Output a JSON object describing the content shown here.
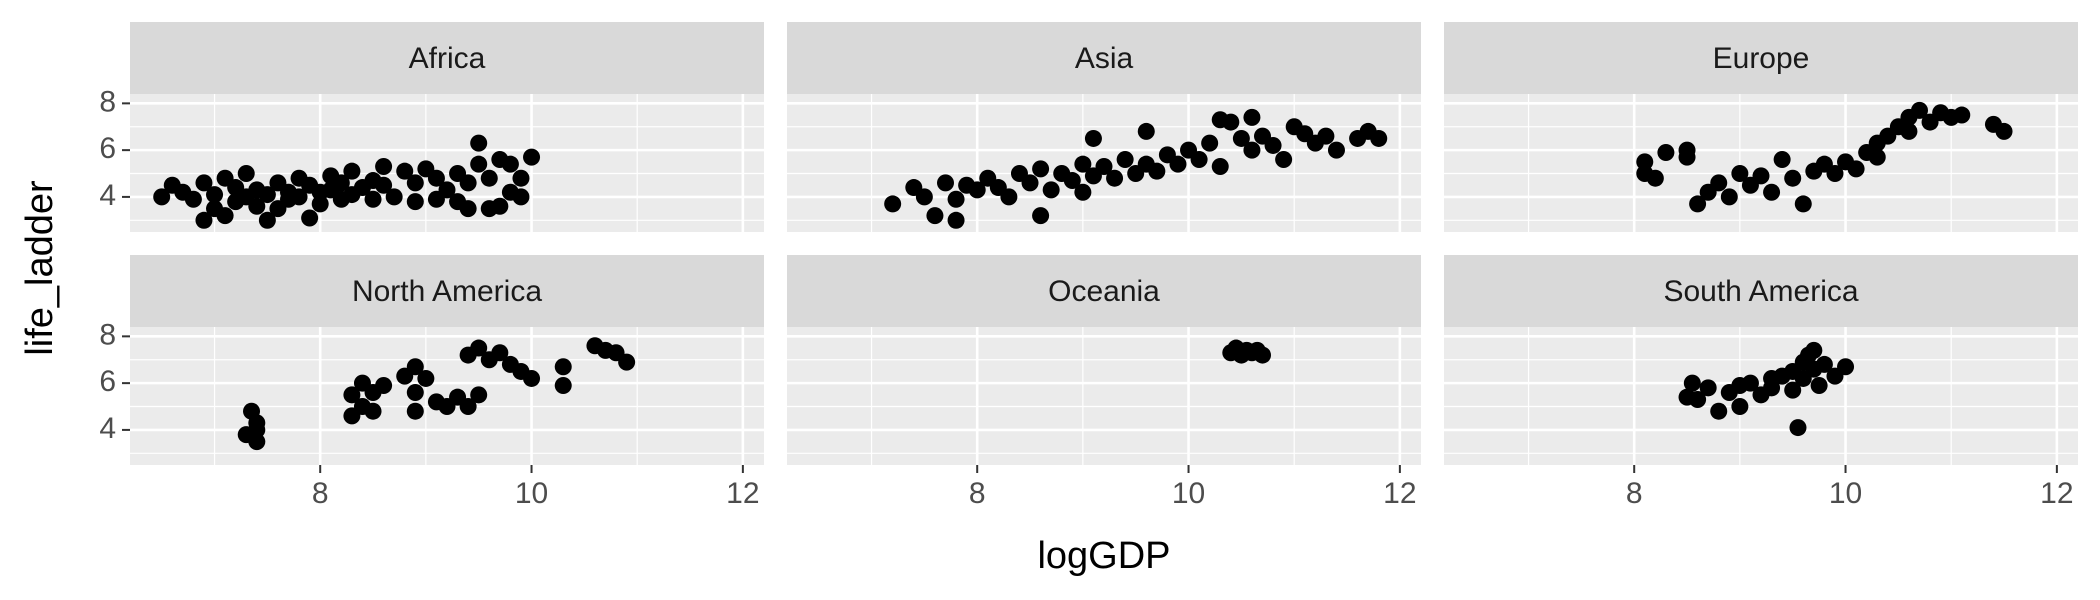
{
  "chart_data": {
    "type": "scatter",
    "xlabel": "logGDP",
    "ylabel": "life_ladder",
    "xlim": [
      6.2,
      12.2
    ],
    "ylim": [
      2.5,
      8.4
    ],
    "x_ticks": [
      8,
      10,
      12
    ],
    "y_ticks": [
      4,
      6,
      8
    ],
    "grid": true,
    "facets": [
      {
        "name": "Africa",
        "points": [
          [
            6.5,
            4.0
          ],
          [
            6.6,
            4.5
          ],
          [
            6.7,
            4.2
          ],
          [
            6.8,
            3.9
          ],
          [
            6.9,
            3.0
          ],
          [
            6.9,
            4.6
          ],
          [
            7.0,
            4.1
          ],
          [
            7.0,
            3.5
          ],
          [
            7.1,
            4.8
          ],
          [
            7.1,
            3.2
          ],
          [
            7.2,
            4.4
          ],
          [
            7.2,
            3.8
          ],
          [
            7.3,
            5.0
          ],
          [
            7.3,
            4.0
          ],
          [
            7.4,
            3.6
          ],
          [
            7.4,
            4.3
          ],
          [
            7.5,
            3.0
          ],
          [
            7.5,
            4.1
          ],
          [
            7.6,
            4.6
          ],
          [
            7.6,
            3.5
          ],
          [
            7.7,
            4.2
          ],
          [
            7.7,
            3.9
          ],
          [
            7.8,
            4.8
          ],
          [
            7.8,
            4.0
          ],
          [
            7.9,
            3.1
          ],
          [
            7.9,
            4.5
          ],
          [
            8.0,
            4.2
          ],
          [
            8.0,
            3.7
          ],
          [
            8.1,
            4.9
          ],
          [
            8.1,
            4.3
          ],
          [
            8.2,
            3.9
          ],
          [
            8.2,
            4.6
          ],
          [
            8.3,
            4.1
          ],
          [
            8.3,
            5.1
          ],
          [
            8.4,
            4.4
          ],
          [
            8.5,
            4.7
          ],
          [
            8.5,
            3.9
          ],
          [
            8.6,
            5.3
          ],
          [
            8.6,
            4.5
          ],
          [
            8.7,
            4.0
          ],
          [
            8.8,
            5.1
          ],
          [
            8.9,
            4.6
          ],
          [
            8.9,
            3.8
          ],
          [
            9.0,
            5.2
          ],
          [
            9.1,
            4.8
          ],
          [
            9.1,
            3.9
          ],
          [
            9.2,
            4.3
          ],
          [
            9.3,
            3.8
          ],
          [
            9.3,
            5.0
          ],
          [
            9.4,
            4.6
          ],
          [
            9.4,
            3.5
          ],
          [
            9.5,
            6.3
          ],
          [
            9.5,
            5.4
          ],
          [
            9.6,
            4.8
          ],
          [
            9.6,
            3.5
          ],
          [
            9.7,
            5.6
          ],
          [
            9.7,
            3.6
          ],
          [
            9.8,
            5.4
          ],
          [
            9.8,
            4.2
          ],
          [
            9.9,
            4.8
          ],
          [
            9.9,
            4.0
          ],
          [
            10.0,
            5.7
          ]
        ]
      },
      {
        "name": "Asia",
        "points": [
          [
            7.2,
            3.7
          ],
          [
            7.4,
            4.4
          ],
          [
            7.5,
            4.0
          ],
          [
            7.6,
            3.2
          ],
          [
            7.7,
            4.6
          ],
          [
            7.8,
            3.9
          ],
          [
            7.8,
            3.0
          ],
          [
            7.9,
            4.5
          ],
          [
            8.0,
            4.3
          ],
          [
            8.1,
            4.8
          ],
          [
            8.2,
            4.4
          ],
          [
            8.3,
            4.0
          ],
          [
            8.4,
            5.0
          ],
          [
            8.5,
            4.6
          ],
          [
            8.6,
            3.2
          ],
          [
            8.6,
            5.2
          ],
          [
            8.7,
            4.3
          ],
          [
            8.8,
            5.0
          ],
          [
            8.9,
            4.7
          ],
          [
            9.0,
            5.4
          ],
          [
            9.0,
            4.2
          ],
          [
            9.1,
            6.5
          ],
          [
            9.1,
            4.9
          ],
          [
            9.2,
            5.3
          ],
          [
            9.3,
            4.8
          ],
          [
            9.4,
            5.6
          ],
          [
            9.5,
            5.0
          ],
          [
            9.6,
            6.8
          ],
          [
            9.6,
            5.4
          ],
          [
            9.7,
            5.1
          ],
          [
            9.8,
            5.8
          ],
          [
            9.9,
            5.4
          ],
          [
            10.0,
            6.0
          ],
          [
            10.1,
            5.6
          ],
          [
            10.2,
            6.3
          ],
          [
            10.3,
            7.3
          ],
          [
            10.3,
            5.3
          ],
          [
            10.4,
            7.2
          ],
          [
            10.5,
            6.5
          ],
          [
            10.6,
            6.0
          ],
          [
            10.6,
            7.4
          ],
          [
            10.7,
            6.6
          ],
          [
            10.8,
            6.2
          ],
          [
            10.9,
            5.6
          ],
          [
            11.0,
            7.0
          ],
          [
            11.1,
            6.7
          ],
          [
            11.2,
            6.3
          ],
          [
            11.3,
            6.6
          ],
          [
            11.4,
            6.0
          ],
          [
            11.6,
            6.5
          ],
          [
            11.7,
            6.8
          ],
          [
            11.8,
            6.5
          ]
        ]
      },
      {
        "name": "Europe",
        "points": [
          [
            8.1,
            5.0
          ],
          [
            8.1,
            5.5
          ],
          [
            8.2,
            4.8
          ],
          [
            8.3,
            5.9
          ],
          [
            8.5,
            6.0
          ],
          [
            8.5,
            5.7
          ],
          [
            8.6,
            3.7
          ],
          [
            8.7,
            4.2
          ],
          [
            8.8,
            4.6
          ],
          [
            8.9,
            4.0
          ],
          [
            9.0,
            5.0
          ],
          [
            9.1,
            4.5
          ],
          [
            9.2,
            4.9
          ],
          [
            9.3,
            4.2
          ],
          [
            9.4,
            5.6
          ],
          [
            9.5,
            4.8
          ],
          [
            9.6,
            3.7
          ],
          [
            9.7,
            5.1
          ],
          [
            9.8,
            5.4
          ],
          [
            9.9,
            5.0
          ],
          [
            10.0,
            5.5
          ],
          [
            10.1,
            5.2
          ],
          [
            10.2,
            5.9
          ],
          [
            10.3,
            6.3
          ],
          [
            10.3,
            5.7
          ],
          [
            10.4,
            6.6
          ],
          [
            10.5,
            7.0
          ],
          [
            10.6,
            6.8
          ],
          [
            10.6,
            7.4
          ],
          [
            10.7,
            7.7
          ],
          [
            10.8,
            7.2
          ],
          [
            10.9,
            7.6
          ],
          [
            11.0,
            7.4
          ],
          [
            11.1,
            7.5
          ],
          [
            11.4,
            7.1
          ],
          [
            11.5,
            6.8
          ]
        ]
      },
      {
        "name": "North America",
        "points": [
          [
            7.3,
            3.8
          ],
          [
            7.35,
            4.8
          ],
          [
            7.4,
            4.3
          ],
          [
            7.4,
            3.5
          ],
          [
            7.4,
            4.0
          ],
          [
            8.3,
            4.6
          ],
          [
            8.3,
            5.5
          ],
          [
            8.4,
            5.0
          ],
          [
            8.4,
            6.0
          ],
          [
            8.5,
            5.6
          ],
          [
            8.5,
            4.8
          ],
          [
            8.6,
            5.9
          ],
          [
            8.8,
            6.3
          ],
          [
            8.9,
            5.6
          ],
          [
            8.9,
            6.7
          ],
          [
            8.9,
            4.8
          ],
          [
            9.0,
            6.2
          ],
          [
            9.1,
            5.2
          ],
          [
            9.2,
            5.0
          ],
          [
            9.3,
            5.4
          ],
          [
            9.4,
            7.2
          ],
          [
            9.4,
            5.0
          ],
          [
            9.5,
            7.5
          ],
          [
            9.5,
            5.5
          ],
          [
            9.6,
            7.0
          ],
          [
            9.7,
            7.3
          ],
          [
            9.8,
            6.8
          ],
          [
            9.9,
            6.5
          ],
          [
            10.0,
            6.2
          ],
          [
            10.3,
            5.9
          ],
          [
            10.3,
            6.7
          ],
          [
            10.6,
            7.6
          ],
          [
            10.7,
            7.4
          ],
          [
            10.8,
            7.3
          ],
          [
            10.9,
            6.9
          ]
        ]
      },
      {
        "name": "Oceania",
        "points": [
          [
            10.4,
            7.3
          ],
          [
            10.45,
            7.5
          ],
          [
            10.5,
            7.2
          ],
          [
            10.55,
            7.4
          ],
          [
            10.6,
            7.3
          ],
          [
            10.65,
            7.4
          ],
          [
            10.7,
            7.2
          ]
        ]
      },
      {
        "name": "South America",
        "points": [
          [
            8.5,
            5.4
          ],
          [
            8.55,
            6.0
          ],
          [
            8.6,
            5.3
          ],
          [
            8.7,
            5.8
          ],
          [
            8.8,
            4.8
          ],
          [
            8.9,
            5.6
          ],
          [
            9.0,
            5.9
          ],
          [
            9.0,
            5.0
          ],
          [
            9.1,
            6.0
          ],
          [
            9.2,
            5.5
          ],
          [
            9.3,
            6.2
          ],
          [
            9.3,
            5.8
          ],
          [
            9.4,
            6.3
          ],
          [
            9.5,
            6.5
          ],
          [
            9.5,
            5.7
          ],
          [
            9.55,
            4.1
          ],
          [
            9.6,
            6.9
          ],
          [
            9.6,
            6.2
          ],
          [
            9.65,
            7.2
          ],
          [
            9.7,
            6.6
          ],
          [
            9.7,
            7.4
          ],
          [
            9.75,
            5.9
          ],
          [
            9.8,
            6.8
          ],
          [
            9.9,
            6.3
          ],
          [
            10.0,
            6.7
          ]
        ]
      }
    ]
  }
}
